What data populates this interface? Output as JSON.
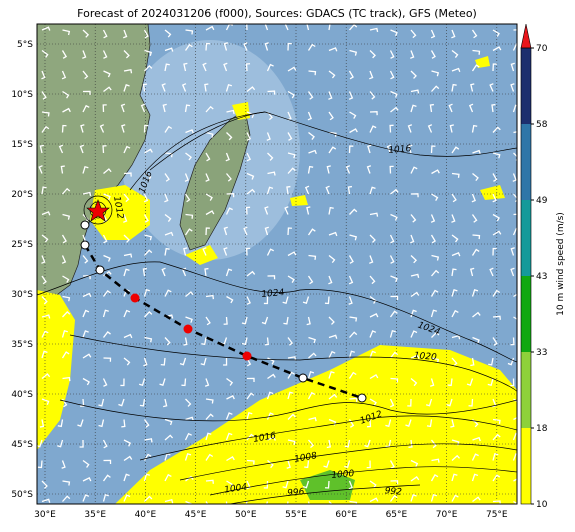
{
  "title": "Forecast of 2024031206 (f000), Sources: GDACS (TC track), GFS (Meteo)",
  "map": {
    "lat_ticks": [
      "5°S",
      "10°S",
      "15°S",
      "20°S",
      "25°S",
      "30°S",
      "35°S",
      "40°S",
      "45°S",
      "50°S"
    ],
    "lon_ticks": [
      "30°E",
      "35°E",
      "40°E",
      "45°E",
      "50°E",
      "55°E",
      "60°E",
      "65°E",
      "70°E",
      "75°E"
    ],
    "isobar_labels": [
      "1016",
      "1016",
      "1012",
      "1024",
      "1024",
      "1020",
      "1012",
      "1016",
      "1008",
      "1000",
      "1004",
      "996",
      "992"
    ]
  },
  "colorbar": {
    "label": "10 m wind speed (m/s)",
    "ticks": [
      10,
      18,
      33,
      43,
      49,
      58,
      70
    ],
    "colors": [
      "#ffff00",
      "#8ed13a",
      "#11a811",
      "#149a9a",
      "#2f76a8",
      "#1d2f6e"
    ],
    "extend_color": "#e8161c"
  }
}
